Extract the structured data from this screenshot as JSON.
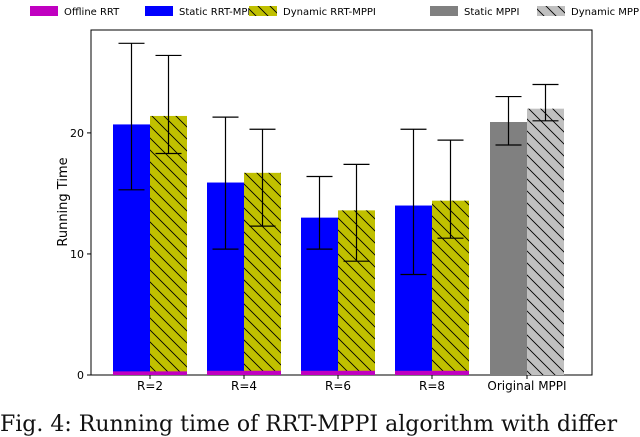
{
  "chart_data": {
    "type": "bar",
    "title": "",
    "xlabel": "",
    "ylabel": "Running Time",
    "ylim": [
      0,
      28.5
    ],
    "yticks": [
      0,
      10,
      20
    ],
    "grid": false,
    "legend_position": "top",
    "categories": [
      "R=2",
      "R=4",
      "R=6",
      "R=8",
      "Original MPPI"
    ],
    "series": [
      {
        "name": "Offline RRT",
        "color": "#c000c0",
        "hatch": "none",
        "values": [
          0.3,
          0.35,
          0.35,
          0.35,
          null
        ]
      },
      {
        "name": "Static RRT-MPPI",
        "color": "#0000ff",
        "hatch": "none",
        "values": [
          20.7,
          15.9,
          13.0,
          14.0,
          null
        ],
        "errors": [
          [
            15.3,
            27.4
          ],
          [
            10.4,
            21.3
          ],
          [
            10.4,
            16.4
          ],
          [
            8.3,
            20.3
          ],
          null
        ]
      },
      {
        "name": "Dynamic RRT-MPPI",
        "color": "#c0c000",
        "hatch": "diagonal",
        "values": [
          21.4,
          16.7,
          13.6,
          14.4,
          null
        ],
        "errors": [
          [
            18.3,
            26.4
          ],
          [
            12.3,
            20.3
          ],
          [
            9.4,
            17.4
          ],
          [
            11.3,
            19.4
          ],
          null
        ]
      },
      {
        "name": "Static MPPI",
        "color": "#808080",
        "hatch": "none",
        "values": [
          null,
          null,
          null,
          null,
          20.9
        ],
        "errors": [
          null,
          null,
          null,
          null,
          [
            19.0,
            23.0
          ]
        ]
      },
      {
        "name": "Dynamic MPPI",
        "color": "#c0c0c0",
        "hatch": "diagonal",
        "values": [
          null,
          null,
          null,
          null,
          22.0
        ],
        "errors": [
          null,
          null,
          null,
          null,
          [
            21.0,
            24.0
          ]
        ]
      }
    ]
  },
  "caption": "Fig. 4: Running time of RRT-MPPI algorithm with differ"
}
